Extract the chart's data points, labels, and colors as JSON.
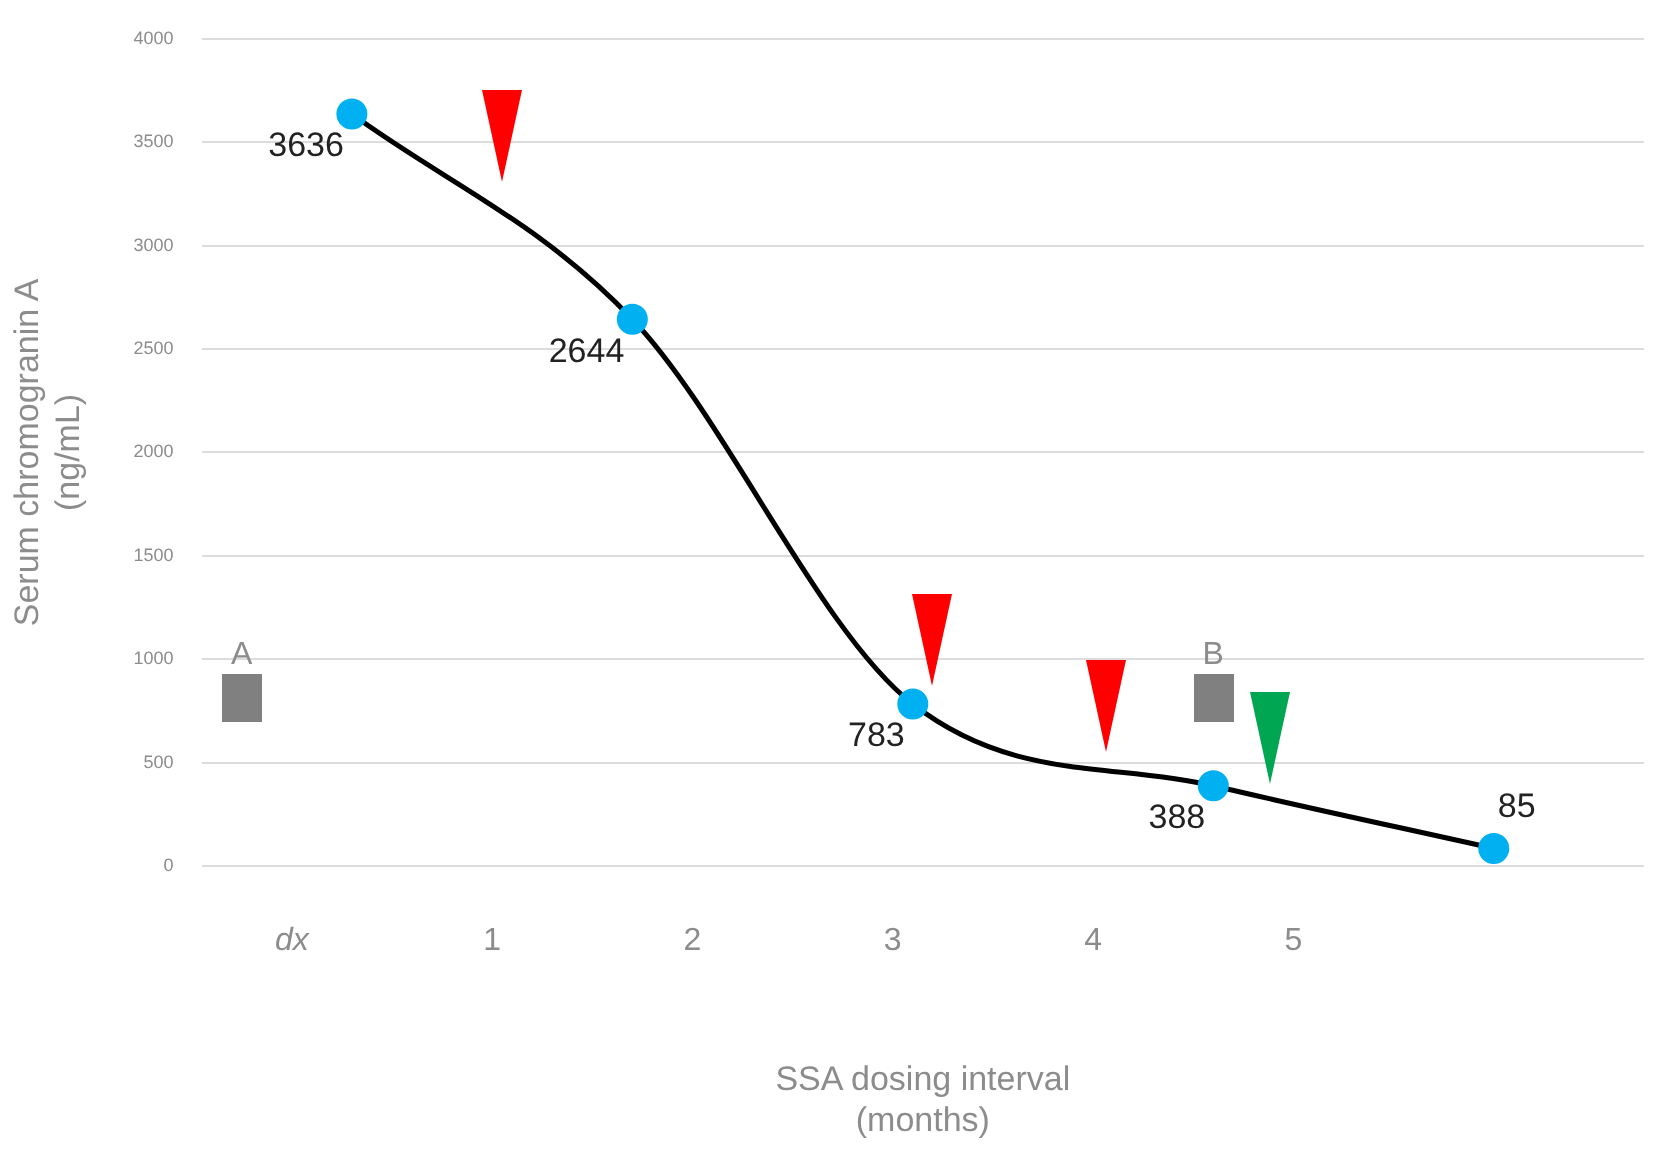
{
  "chart_data": {
    "type": "line",
    "xlabel": "SSA dosing interval\n(months)",
    "ylabel": "Serum chromogranin A\n(ng/mL)",
    "x": [
      0.3,
      1.7,
      3.1,
      4.6,
      6.0
    ],
    "series": [
      {
        "color": "#000000",
        "values": [
          3636,
          2644,
          783,
          388,
          85
        ]
      }
    ],
    "data_labels": true,
    "marker": "circle",
    "line_style": "solid",
    "xlim": [
      -0.45,
      6.75
    ],
    "xticks": [
      {
        "value": 0,
        "label": "dx"
      },
      1,
      2,
      3,
      4,
      5
    ],
    "ylim": [
      0,
      4000
    ],
    "yticks": [
      0,
      500,
      1000,
      1500,
      2000,
      2500,
      3000,
      3500,
      4000
    ],
    "grid": "y",
    "legend": false,
    "annotations": [
      "A",
      "B"
    ]
  }
}
